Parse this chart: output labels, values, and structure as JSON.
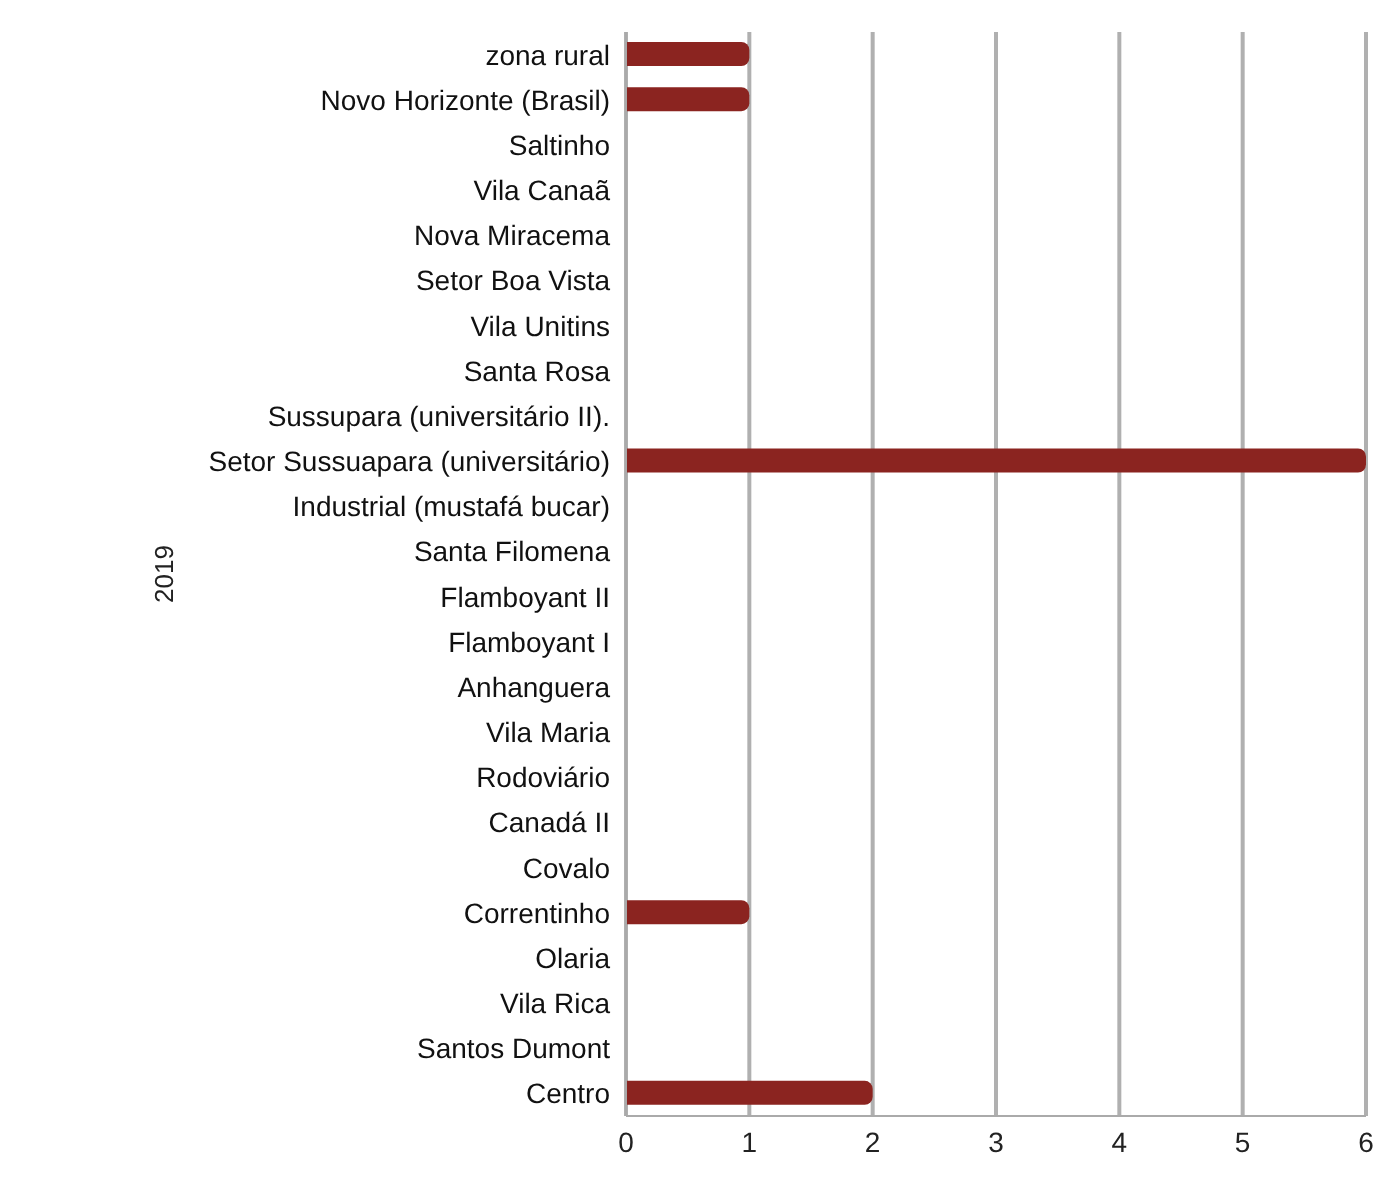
{
  "chart_data": {
    "type": "bar",
    "orientation": "horizontal",
    "ylabel": "2019",
    "categories": [
      "zona rural",
      "Novo Horizonte (Brasil)",
      "Saltinho",
      "Vila Canaã",
      "Nova Miracema",
      "Setor Boa Vista",
      "Vila Unitins",
      "Santa Rosa",
      "Sussupara (universitário II).",
      "Setor Sussuapara (universitário)",
      "Industrial (mustafá bucar)",
      "Santa Filomena",
      "Flamboyant II",
      "Flamboyant I",
      "Anhanguera",
      "Vila Maria",
      "Rodoviário",
      "Canadá II",
      "Covalo",
      "Correntinho",
      "Olaria",
      "Vila Rica",
      "Santos Dumont",
      "Centro"
    ],
    "values": [
      1,
      1,
      0,
      0,
      0,
      0,
      0,
      0,
      0,
      6,
      0,
      0,
      0,
      0,
      0,
      0,
      0,
      0,
      0,
      1,
      0,
      0,
      0,
      2
    ],
    "color": "#8b2420",
    "xlim": [
      0,
      6
    ],
    "xticks": [
      0,
      1,
      2,
      3,
      4,
      5,
      6
    ],
    "grid": "x"
  }
}
